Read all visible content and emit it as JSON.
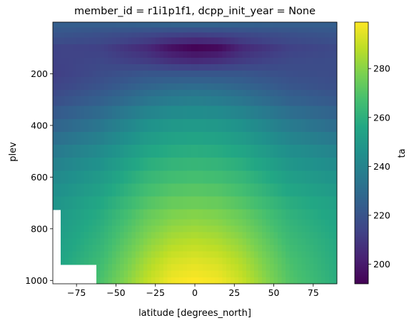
{
  "chart_data": {
    "type": "heatmap",
    "title": "member_id = r1i1p1f1, dcpp_init_year = None",
    "xlabel": "latitude [degrees_north]",
    "ylabel": "plev",
    "colorbar_label": "ta",
    "xlim": [
      -90,
      90
    ],
    "ylim": [
      1013,
      0
    ],
    "xticks": [
      -75,
      -50,
      -25,
      0,
      25,
      50,
      75
    ],
    "yticks": [
      200,
      400,
      600,
      800,
      1000
    ],
    "colorbar_range": [
      192,
      299
    ],
    "colorbar_ticks": [
      200,
      220,
      240,
      260,
      280
    ],
    "colormap": "viridis",
    "plev_levels": [
      10,
      30,
      50,
      70,
      100,
      125,
      150,
      175,
      200,
      225,
      250,
      275,
      300,
      350,
      400,
      450,
      500,
      550,
      600,
      650,
      700,
      750,
      775,
      800,
      825,
      850,
      875,
      900,
      925,
      950,
      975,
      1000
    ],
    "latitude_nodes": [
      -90,
      -60,
      -30,
      -15,
      0,
      15,
      30,
      60,
      90
    ],
    "profiles": [
      {
        "plev": 10,
        "ta": [
          224,
          224,
          225,
          226,
          226,
          226,
          225,
          224,
          224
        ]
      },
      {
        "plev": 50,
        "ta": [
          220,
          218,
          215,
          213,
          212,
          213,
          215,
          218,
          220
        ]
      },
      {
        "plev": 100,
        "ta": [
          214,
          213,
          205,
          197,
          193,
          195,
          205,
          213,
          216
        ]
      },
      {
        "plev": 150,
        "ta": [
          213,
          215,
          211,
          207,
          205,
          207,
          211,
          216,
          217
        ]
      },
      {
        "plev": 200,
        "ta": [
          212,
          217,
          221,
          221,
          221,
          221,
          221,
          218,
          217
        ]
      },
      {
        "plev": 250,
        "ta": [
          214,
          220,
          227,
          229,
          230,
          229,
          227,
          221,
          218
        ]
      },
      {
        "plev": 300,
        "ta": [
          218,
          225,
          234,
          237,
          238,
          237,
          234,
          226,
          222
        ]
      },
      {
        "plev": 400,
        "ta": [
          226,
          234,
          246,
          249,
          250,
          249,
          246,
          236,
          230
        ]
      },
      {
        "plev": 500,
        "ta": [
          235,
          243,
          255,
          258,
          259,
          258,
          255,
          245,
          240
        ]
      },
      {
        "plev": 600,
        "ta": [
          242,
          250,
          263,
          266,
          267,
          266,
          263,
          252,
          247
        ]
      },
      {
        "plev": 700,
        "ta": [
          247,
          256,
          270,
          274,
          275,
          274,
          270,
          259,
          253
        ]
      },
      {
        "plev": 850,
        "ta": [
          251,
          262,
          280,
          286,
          288,
          286,
          281,
          265,
          257
        ]
      },
      {
        "plev": 925,
        "ta": [
          253,
          265,
          285,
          292,
          294,
          292,
          286,
          268,
          258
        ]
      },
      {
        "plev": 1000,
        "ta": [
          254,
          268,
          289,
          297,
          299,
          297,
          290,
          270,
          259
        ]
      }
    ],
    "missing_region": [
      {
        "lat_max": -89,
        "plev_min": 640
      },
      {
        "lat_max": -86,
        "plev_min": 740
      },
      {
        "lat_max": -85,
        "plev_min": 850
      },
      {
        "lat_max": -84,
        "plev_min": 920
      },
      {
        "lat_max": -63,
        "plev_min": 940
      }
    ]
  }
}
